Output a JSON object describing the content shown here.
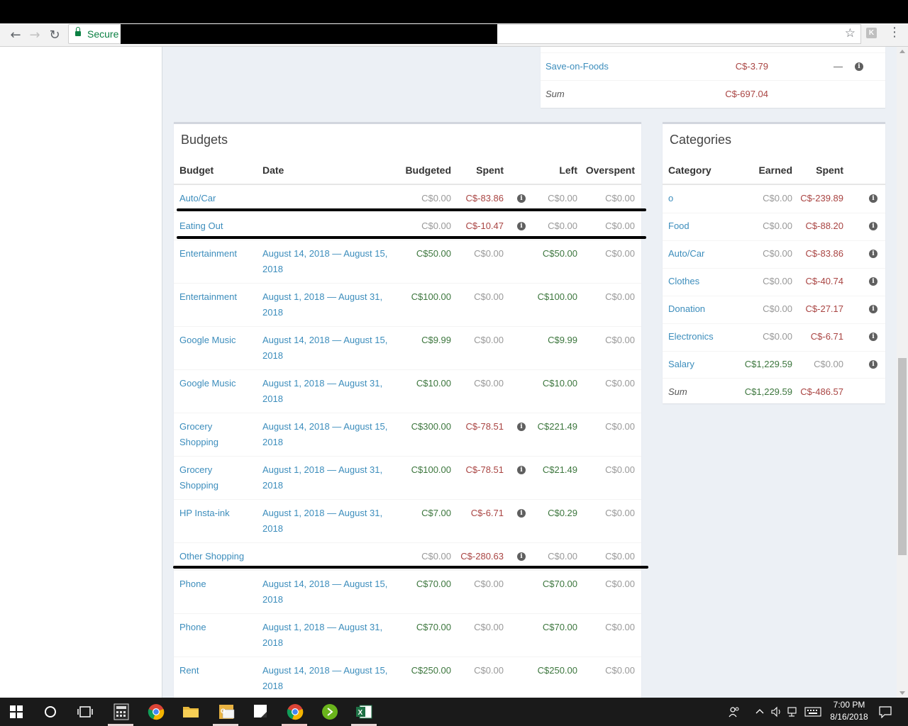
{
  "browser": {
    "secure_label": "Secure",
    "ext_label": "K"
  },
  "top_table": {
    "row": {
      "payee": "Save-on-Foods",
      "amount": "C$-3.79",
      "dash": "—"
    },
    "sum": {
      "label": "Sum",
      "amount": "C$-697.04"
    }
  },
  "budgets": {
    "title": "Budgets",
    "headers": {
      "budget": "Budget",
      "date": "Date",
      "budgeted": "Budgeted",
      "spent": "Spent",
      "left": "Left",
      "overspent": "Overspent"
    },
    "rows": [
      {
        "name": "Auto/Car",
        "date1": "",
        "date2": "",
        "budgeted": "C$0.00",
        "spent": "C$-83.86",
        "info": true,
        "left": "C$0.00",
        "overspent": "C$0.00"
      },
      {
        "name": "Eating Out",
        "date1": "",
        "date2": "",
        "budgeted": "C$0.00",
        "spent": "C$-10.47",
        "info": true,
        "left": "C$0.00",
        "overspent": "C$0.00"
      },
      {
        "name": "Entertainment",
        "date1": "August 14, 2018 — August 15,",
        "date2": "2018",
        "budgeted": "C$50.00",
        "spent": "C$0.00",
        "info": false,
        "left": "C$50.00",
        "overspent": "C$0.00"
      },
      {
        "name": "Entertainment",
        "date1": "August 1, 2018 — August 31,",
        "date2": "2018",
        "budgeted": "C$100.00",
        "spent": "C$0.00",
        "info": false,
        "left": "C$100.00",
        "overspent": "C$0.00"
      },
      {
        "name": "Google Music",
        "date1": "August 14, 2018 — August 15,",
        "date2": "2018",
        "budgeted": "C$9.99",
        "spent": "C$0.00",
        "info": false,
        "left": "C$9.99",
        "overspent": "C$0.00"
      },
      {
        "name": "Google Music",
        "date1": "August 1, 2018 — August 31,",
        "date2": "2018",
        "budgeted": "C$10.00",
        "spent": "C$0.00",
        "info": false,
        "left": "C$10.00",
        "overspent": "C$0.00"
      },
      {
        "name": "Grocery",
        "name2": "Shopping",
        "date1": "August 14, 2018 — August 15,",
        "date2": "2018",
        "budgeted": "C$300.00",
        "spent": "C$-78.51",
        "info": true,
        "left": "C$221.49",
        "overspent": "C$0.00"
      },
      {
        "name": "Grocery",
        "name2": "Shopping",
        "date1": "August 1, 2018 — August 31,",
        "date2": "2018",
        "budgeted": "C$100.00",
        "spent": "C$-78.51",
        "info": true,
        "left": "C$21.49",
        "overspent": "C$0.00"
      },
      {
        "name": "HP Insta-ink",
        "date1": "August 1, 2018 — August 31,",
        "date2": "2018",
        "budgeted": "C$7.00",
        "spent": "C$-6.71",
        "info": true,
        "left": "C$0.29",
        "overspent": "C$0.00"
      },
      {
        "name": "Other Shopping",
        "date1": "",
        "date2": "",
        "budgeted": "C$0.00",
        "spent": "C$-280.63",
        "info": true,
        "left": "C$0.00",
        "overspent": "C$0.00"
      },
      {
        "name": "Phone",
        "date1": "August 14, 2018 — August 15,",
        "date2": "2018",
        "budgeted": "C$70.00",
        "spent": "C$0.00",
        "info": false,
        "left": "C$70.00",
        "overspent": "C$0.00"
      },
      {
        "name": "Phone",
        "date1": "August 1, 2018 — August 31,",
        "date2": "2018",
        "budgeted": "C$70.00",
        "spent": "C$0.00",
        "info": false,
        "left": "C$70.00",
        "overspent": "C$0.00"
      },
      {
        "name": "Rent",
        "date1": "August 14, 2018 — August 15,",
        "date2": "2018",
        "budgeted": "C$250.00",
        "spent": "C$0.00",
        "info": false,
        "left": "C$250.00",
        "overspent": "C$0.00"
      }
    ]
  },
  "categories": {
    "title": "Categories",
    "headers": {
      "category": "Category",
      "earned": "Earned",
      "spent": "Spent"
    },
    "rows": [
      {
        "name": "o",
        "earned": "C$0.00",
        "spent": "C$-239.89"
      },
      {
        "name": "Food",
        "earned": "C$0.00",
        "spent": "C$-88.20"
      },
      {
        "name": "Auto/Car",
        "earned": "C$0.00",
        "spent": "C$-83.86"
      },
      {
        "name": "Clothes",
        "earned": "C$0.00",
        "spent": "C$-40.74"
      },
      {
        "name": "Donation",
        "earned": "C$0.00",
        "spent": "C$-27.17"
      },
      {
        "name": "Electronics",
        "earned": "C$0.00",
        "spent": "C$-6.71"
      },
      {
        "name": "Salary",
        "earned": "C$1,229.59",
        "spent": "C$0.00"
      }
    ],
    "sum": {
      "label": "Sum",
      "earned": "C$1,229.59",
      "spent": "C$-486.57"
    }
  },
  "taskbar": {
    "time": "7:00 PM",
    "date": "8/16/2018"
  },
  "colors": {
    "link": "#3c8dbc",
    "negative": "#a94442",
    "positive": "#3c763d",
    "muted": "#999999"
  }
}
